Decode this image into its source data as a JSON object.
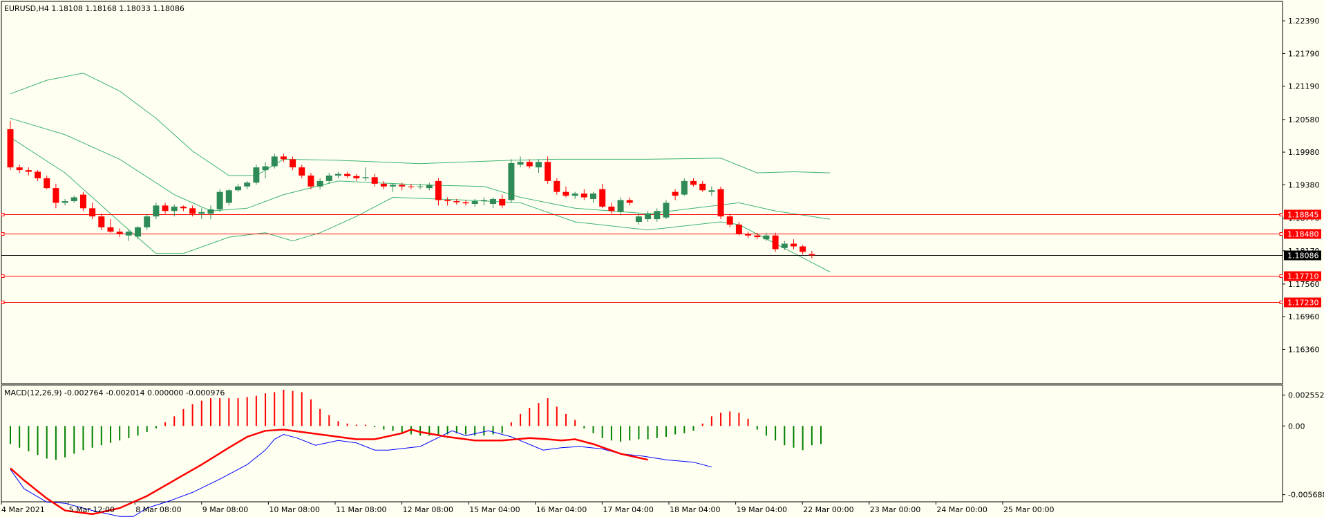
{
  "window": {
    "symbol_info": "EURUSD,H4  1.18108 1.18168 1.18033 1.18086",
    "macd_info": "MACD(12,26,9) -0.002764 -0.002014 0.000000 -0.000976"
  },
  "colors": {
    "background": "#fefff0",
    "bull_candle": "#2e8b57",
    "bear_candle": "#ff0000",
    "bollinger": "#3cb371",
    "level_line": "#ff0000",
    "price_line": "#000000",
    "macd_line": "#0000ff",
    "signal_line": "#ff0000",
    "hist_up": "#ff0000",
    "hist_down": "#008000"
  },
  "price_axis": {
    "ticks": [
      "1.22390",
      "1.21790",
      "1.21190",
      "1.20580",
      "1.19980",
      "1.19380",
      "1.18770",
      "1.18170",
      "1.17560",
      "1.16960",
      "1.16360"
    ],
    "range": [
      1.1596,
      1.2262
    ]
  },
  "macd_axis": {
    "ticks": [
      "0.002552",
      "0.00",
      "-0.005688"
    ],
    "range": [
      -0.00605,
      0.00305
    ]
  },
  "levels": [
    {
      "label": "1.18845",
      "value": 1.18845
    },
    {
      "label": "1.18480",
      "value": 1.1848
    },
    {
      "label": "1.17710",
      "value": 1.1771
    },
    {
      "label": "1.17230",
      "value": 1.1723
    }
  ],
  "current_price": {
    "label": "1.18086",
    "value": 1.18086
  },
  "time_axis": [
    "4 Mar 2021",
    "5 Mar 12:00",
    "8 Mar 08:00",
    "9 Mar 08:00",
    "10 Mar 08:00",
    "11 Mar 08:00",
    "12 Mar 08:00",
    "15 Mar 04:00",
    "16 Mar 04:00",
    "17 Mar 04:00",
    "18 Mar 04:00",
    "19 Mar 04:00",
    "22 Mar 00:00",
    "23 Mar 00:00",
    "24 Mar 00:00",
    "25 Mar 00:00"
  ],
  "chart_data": {
    "type": "candlestick",
    "symbol": "EURUSD",
    "timeframe": "H4",
    "candles": [
      [
        1.204,
        1.2055,
        1.1965,
        1.197
      ],
      [
        1.197,
        1.1975,
        1.196,
        1.1965
      ],
      [
        1.1965,
        1.197,
        1.1955,
        1.1962
      ],
      [
        1.1962,
        1.1965,
        1.1945,
        1.195
      ],
      [
        1.195,
        1.1955,
        1.193,
        1.1932
      ],
      [
        1.1932,
        1.194,
        1.1895,
        1.1905
      ],
      [
        1.1905,
        1.1912,
        1.19,
        1.1908
      ],
      [
        1.1908,
        1.1918,
        1.1905,
        1.1915
      ],
      [
        1.192,
        1.1925,
        1.189,
        1.1895
      ],
      [
        1.1895,
        1.1905,
        1.1875,
        1.188
      ],
      [
        1.188,
        1.1885,
        1.1855,
        1.186
      ],
      [
        1.186,
        1.1875,
        1.185,
        1.1852
      ],
      [
        1.1852,
        1.1858,
        1.1842,
        1.1848
      ],
      [
        1.1845,
        1.1855,
        1.1835,
        1.1852
      ],
      [
        1.1843,
        1.1862,
        1.1838,
        1.186
      ],
      [
        1.186,
        1.1885,
        1.1855,
        1.188
      ],
      [
        1.188,
        1.1905,
        1.1875,
        1.19
      ],
      [
        1.19,
        1.1905,
        1.1885,
        1.189
      ],
      [
        1.189,
        1.1902,
        1.188,
        1.1898
      ],
      [
        1.1898,
        1.19,
        1.189,
        1.1895
      ],
      [
        1.1895,
        1.19,
        1.188,
        1.1885
      ],
      [
        1.1885,
        1.1895,
        1.1875,
        1.1888
      ],
      [
        1.1885,
        1.19,
        1.1875,
        1.1893
      ],
      [
        1.1893,
        1.193,
        1.1888,
        1.1925
      ],
      [
        1.1905,
        1.193,
        1.19,
        1.1928
      ],
      [
        1.1928,
        1.194,
        1.1925,
        1.1935
      ],
      [
        1.1935,
        1.1945,
        1.193,
        1.1942
      ],
      [
        1.1942,
        1.1975,
        1.1938,
        1.197
      ],
      [
        1.1965,
        1.198,
        1.195,
        1.1972
      ],
      [
        1.1972,
        1.1995,
        1.1968,
        1.199
      ],
      [
        1.199,
        1.1995,
        1.198,
        1.1985
      ],
      [
        1.1985,
        1.199,
        1.1965,
        1.197
      ],
      [
        1.197,
        1.1975,
        1.195,
        1.1955
      ],
      [
        1.1955,
        1.196,
        1.193,
        1.1935
      ],
      [
        1.1935,
        1.195,
        1.193,
        1.1945
      ],
      [
        1.1945,
        1.196,
        1.194,
        1.1955
      ],
      [
        1.1955,
        1.1962,
        1.195,
        1.1958
      ],
      [
        1.1958,
        1.1962,
        1.195,
        1.1954
      ],
      [
        1.1954,
        1.1958,
        1.1945,
        1.195
      ],
      [
        1.195,
        1.197,
        1.1945,
        1.1952
      ],
      [
        1.1952,
        1.1958,
        1.1935,
        1.194
      ],
      [
        1.194,
        1.1945,
        1.193,
        1.1935
      ],
      [
        1.1935,
        1.194,
        1.1925,
        1.1938
      ],
      [
        1.1938,
        1.1942,
        1.1928,
        1.1935
      ],
      [
        1.1935,
        1.194,
        1.193,
        1.1934
      ],
      [
        1.1934,
        1.194,
        1.193,
        1.1935
      ],
      [
        1.1932,
        1.1942,
        1.1928,
        1.1938
      ],
      [
        1.1945,
        1.195,
        1.19,
        1.191
      ],
      [
        1.191,
        1.1915,
        1.19,
        1.1908
      ],
      [
        1.1908,
        1.1912,
        1.1902,
        1.1906
      ],
      [
        1.1906,
        1.191,
        1.19,
        1.1904
      ],
      [
        1.1903,
        1.1912,
        1.1898,
        1.1908
      ],
      [
        1.1908,
        1.1915,
        1.19,
        1.191
      ],
      [
        1.1903,
        1.1915,
        1.1895,
        1.1912
      ],
      [
        1.1912,
        1.192,
        1.1895,
        1.19
      ],
      [
        1.191,
        1.1985,
        1.1905,
        1.1978
      ],
      [
        1.1975,
        1.199,
        1.197,
        1.198
      ],
      [
        1.198,
        1.1985,
        1.1968,
        1.1972
      ],
      [
        1.197,
        1.1985,
        1.196,
        1.198
      ],
      [
        1.198,
        1.199,
        1.194,
        1.1945
      ],
      [
        1.1945,
        1.195,
        1.192,
        1.1925
      ],
      [
        1.1925,
        1.1935,
        1.1915,
        1.1918
      ],
      [
        1.1918,
        1.1925,
        1.1912,
        1.1922
      ],
      [
        1.1922,
        1.193,
        1.191,
        1.1915
      ],
      [
        1.1912,
        1.1925,
        1.1905,
        1.1922
      ],
      [
        1.193,
        1.194,
        1.1895,
        1.1898
      ],
      [
        1.1898,
        1.1905,
        1.1885,
        1.189
      ],
      [
        1.1888,
        1.1915,
        1.1882,
        1.191
      ],
      [
        1.191,
        1.1915,
        1.19,
        1.1905
      ],
      [
        1.187,
        1.1885,
        1.1865,
        1.188
      ],
      [
        1.1875,
        1.189,
        1.187,
        1.1885
      ],
      [
        1.1875,
        1.1895,
        1.187,
        1.189
      ],
      [
        1.1878,
        1.191,
        1.1875,
        1.1905
      ],
      [
        1.1925,
        1.193,
        1.191,
        1.1918
      ],
      [
        1.192,
        1.195,
        1.1918,
        1.1945
      ],
      [
        1.1945,
        1.195,
        1.1935,
        1.1938
      ],
      [
        1.194,
        1.1945,
        1.1925,
        1.1928
      ],
      [
        1.1925,
        1.1935,
        1.1918,
        1.1928
      ],
      [
        1.193,
        1.1935,
        1.1875,
        1.188
      ],
      [
        1.188,
        1.1885,
        1.186,
        1.1865
      ],
      [
        1.1865,
        1.187,
        1.1845,
        1.1848
      ],
      [
        1.1848,
        1.1852,
        1.184,
        1.1845
      ],
      [
        1.1845,
        1.185,
        1.1838,
        1.1842
      ],
      [
        1.1838,
        1.185,
        1.1835,
        1.1845
      ],
      [
        1.1845,
        1.185,
        1.1815,
        1.182
      ],
      [
        1.1822,
        1.1835,
        1.1818,
        1.183
      ],
      [
        1.183,
        1.1838,
        1.182,
        1.1825
      ],
      [
        1.1825,
        1.1828,
        1.181,
        1.1815
      ],
      [
        1.18108,
        1.18168,
        1.18033,
        1.18086
      ]
    ],
    "bollinger": {
      "upper": [
        [
          0,
          1.2105
        ],
        [
          4,
          1.213
        ],
        [
          8,
          1.2143
        ],
        [
          12,
          1.211
        ],
        [
          16,
          1.206
        ],
        [
          20,
          1.2
        ],
        [
          24,
          1.1955
        ],
        [
          27,
          1.1955
        ],
        [
          30,
          1.1985
        ],
        [
          36,
          1.1983
        ],
        [
          45,
          1.1977
        ],
        [
          55,
          1.1983
        ],
        [
          60,
          1.1985
        ],
        [
          70,
          1.1985
        ],
        [
          78,
          1.1987
        ],
        [
          82,
          1.196
        ],
        [
          86,
          1.1962
        ],
        [
          90,
          1.196
        ]
      ],
      "middle": [
        [
          0,
          1.206
        ],
        [
          6,
          1.203
        ],
        [
          12,
          1.1985
        ],
        [
          18,
          1.192
        ],
        [
          22,
          1.189
        ],
        [
          26,
          1.1895
        ],
        [
          30,
          1.192
        ],
        [
          36,
          1.1945
        ],
        [
          45,
          1.1938
        ],
        [
          52,
          1.1935
        ],
        [
          56,
          1.1915
        ],
        [
          62,
          1.1895
        ],
        [
          70,
          1.1885
        ],
        [
          80,
          1.1905
        ],
        [
          84,
          1.189
        ],
        [
          90,
          1.1875
        ]
      ],
      "lower": [
        [
          0,
          1.2025
        ],
        [
          6,
          1.196
        ],
        [
          12,
          1.187
        ],
        [
          16,
          1.1812
        ],
        [
          19,
          1.1812
        ],
        [
          24,
          1.1842
        ],
        [
          28,
          1.185
        ],
        [
          31,
          1.1835
        ],
        [
          34,
          1.185
        ],
        [
          38,
          1.188
        ],
        [
          42,
          1.1915
        ],
        [
          50,
          1.191
        ],
        [
          56,
          1.1905
        ],
        [
          62,
          1.187
        ],
        [
          70,
          1.1855
        ],
        [
          78,
          1.187
        ],
        [
          80,
          1.1865
        ],
        [
          90,
          1.1778
        ]
      ]
    },
    "macd": {
      "histogram": [
        -0.0015,
        -0.0018,
        -0.0021,
        -0.0024,
        -0.0027,
        -0.0028,
        -0.0026,
        -0.0023,
        -0.002,
        -0.0018,
        -0.0016,
        -0.0014,
        -0.0012,
        -0.001,
        -0.0008,
        -0.0005,
        -0.0002,
        0.0003,
        0.0008,
        0.0014,
        0.0018,
        0.0021,
        0.0023,
        0.0023,
        0.0023,
        0.0023,
        0.0024,
        0.0025,
        0.0027,
        0.0028,
        0.003,
        0.0029,
        0.0028,
        0.0022,
        0.0014,
        0.0009,
        0.0004,
        0.0002,
        0.0001,
        0.0001,
        -0.0001,
        -0.0003,
        -0.0004,
        -0.0006,
        -0.0007,
        -0.0008,
        -0.0008,
        -0.0008,
        -0.0007,
        -0.0006,
        -0.0007,
        -0.0008,
        -0.0008,
        -0.0007,
        -0.0006,
        0.0003,
        0.001,
        0.0015,
        0.0019,
        0.0023,
        0.0016,
        0.001,
        0.0005,
        -0.0002,
        -0.0006,
        -0.001,
        -0.0012,
        -0.0013,
        -0.0012,
        -0.0011,
        -0.0011,
        -0.001,
        -0.0009,
        -0.0007,
        -0.0006,
        -0.0004,
        0.0002,
        0.0008,
        0.0011,
        0.0012,
        0.0011,
        0.0006,
        -0.0003,
        -0.0008,
        -0.0012,
        -0.0016,
        -0.0018,
        -0.002,
        -0.0016,
        -0.0015
      ],
      "macd_line": [
        [
          0,
          -0.0036
        ],
        [
          3,
          -0.0052
        ],
        [
          8,
          -0.0063
        ],
        [
          12,
          -0.0064
        ],
        [
          18,
          -0.007
        ],
        [
          24,
          -0.0075
        ],
        [
          27,
          -0.0075
        ],
        [
          30,
          -0.0068
        ],
        [
          35,
          -0.0062
        ],
        [
          40,
          -0.0055
        ],
        [
          46,
          -0.0044
        ],
        [
          52,
          -0.0032
        ],
        [
          56,
          -0.002
        ],
        [
          58,
          -0.0011
        ],
        [
          60,
          -0.0007
        ],
        [
          63,
          -0.001
        ],
        [
          67,
          -0.0016
        ],
        [
          72,
          -0.0012
        ],
        [
          76,
          -0.0014
        ],
        [
          80,
          -0.002
        ],
        [
          83,
          -0.002
        ],
        [
          90,
          -0.0017
        ],
        [
          97,
          -0.0004
        ],
        [
          100,
          -0.0008
        ],
        [
          105,
          -0.0004
        ],
        [
          110,
          -0.0009
        ],
        [
          117,
          -0.002
        ],
        [
          121,
          -0.0018
        ],
        [
          125,
          -0.0017
        ],
        [
          130,
          -0.0019
        ],
        [
          134,
          -0.0023
        ],
        [
          139,
          -0.0025
        ],
        [
          144,
          -0.0028
        ],
        [
          150,
          -0.003
        ],
        [
          154,
          -0.0034
        ]
      ],
      "signal_line": [
        [
          0,
          -0.0035
        ],
        [
          3,
          -0.0045
        ],
        [
          8,
          -0.006
        ],
        [
          12,
          -0.007
        ],
        [
          18,
          -0.0073
        ],
        [
          24,
          -0.0068
        ],
        [
          30,
          -0.0058
        ],
        [
          36,
          -0.0045
        ],
        [
          42,
          -0.0032
        ],
        [
          48,
          -0.0018
        ],
        [
          52,
          -0.0009
        ],
        [
          56,
          -0.0004
        ],
        [
          60,
          -0.0003
        ],
        [
          64,
          -0.0005
        ],
        [
          70,
          -0.0008
        ],
        [
          76,
          -0.0011
        ],
        [
          80,
          -0.0011
        ],
        [
          86,
          -0.0006
        ],
        [
          88,
          -0.0003
        ],
        [
          90,
          -0.0005
        ],
        [
          96,
          -0.0009
        ],
        [
          102,
          -0.0012
        ],
        [
          108,
          -0.0012
        ],
        [
          114,
          -0.001
        ],
        [
          118,
          -0.0011
        ],
        [
          121,
          -0.0012
        ],
        [
          124,
          -0.0011
        ],
        [
          128,
          -0.0015
        ],
        [
          134,
          -0.0023
        ],
        [
          140,
          -0.0028
        ]
      ]
    }
  }
}
